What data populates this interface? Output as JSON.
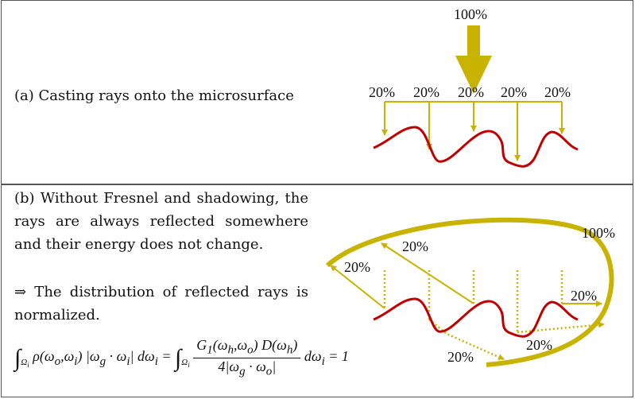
{
  "panel_a": {
    "caption": "(a) Casting rays onto the microsurface",
    "incoming_label": "100%",
    "ray_labels": [
      "20%",
      "20%",
      "20%",
      "20%",
      "20%"
    ]
  },
  "panel_b": {
    "caption_1": "(b) Without Fresnel and shadowing, the rays are always reflected somewhere and their energy does not change.",
    "caption_2": "⇒ The distribution of reflected rays is normalized.",
    "total_label": "100%",
    "reflected_labels": [
      "20%",
      "20%",
      "20%",
      "20%",
      "20%"
    ],
    "equation": "∫Ωi ρ(ωo,ωi) |ωg · ωi| dωi = ∫Ωi G1(ωh,ωo) D(ωh) / 4|ωg · ωo| dωi = 1"
  },
  "colors": {
    "ray": "#c8b400",
    "surface": "#c00000",
    "border": "#555555"
  }
}
